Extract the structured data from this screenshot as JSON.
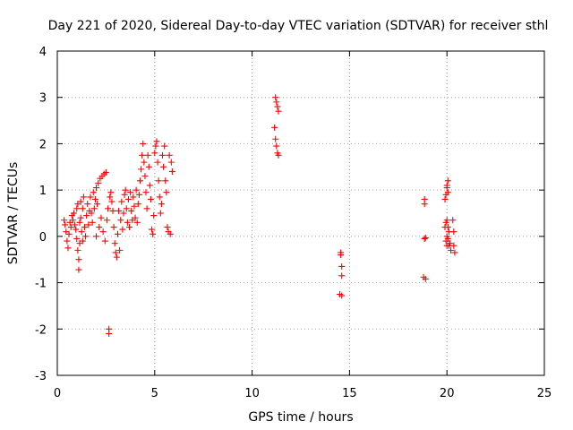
{
  "chart_data": {
    "type": "scatter",
    "title": "Day 221 of 2020, Sidereal Day-to-day VTEC variation (SDTVAR) for receiver sthl",
    "xlabel": "GPS time / hours",
    "ylabel": "SDTVAR / TECUs",
    "xlim": [
      0,
      25
    ],
    "ylim": [
      -3,
      4
    ],
    "xticks": [
      0,
      5,
      10,
      15,
      20,
      25
    ],
    "yticks": [
      -3,
      -2,
      -1,
      0,
      1,
      2,
      3,
      4
    ],
    "xtick_labels": [
      "0",
      "5",
      "10",
      "15",
      "20",
      "25"
    ],
    "ytick_labels": [
      "-3",
      "-2",
      "-1",
      "0",
      "1",
      "2",
      "3",
      "4"
    ],
    "grid": true,
    "marker": "+",
    "series": [
      {
        "name": "SDTVAR",
        "color": "#ff0000",
        "points": [
          [
            0.35,
            0.35
          ],
          [
            0.4,
            0.25
          ],
          [
            0.45,
            0.1
          ],
          [
            0.5,
            -0.1
          ],
          [
            0.55,
            -0.25
          ],
          [
            0.6,
            0.05
          ],
          [
            0.65,
            0.3
          ],
          [
            0.7,
            0.2
          ],
          [
            0.75,
            0.45
          ],
          [
            0.8,
            0.35
          ],
          [
            0.85,
            0.5
          ],
          [
            0.9,
            0.25
          ],
          [
            0.95,
            0.15
          ],
          [
            1.0,
            -0.05
          ],
          [
            1.0,
            0.6
          ],
          [
            1.05,
            -0.3
          ],
          [
            1.05,
            0.7
          ],
          [
            1.1,
            -0.5
          ],
          [
            1.1,
            -0.72
          ],
          [
            1.15,
            0.3
          ],
          [
            1.15,
            -0.15
          ],
          [
            1.2,
            0.4
          ],
          [
            1.2,
            0.75
          ],
          [
            1.25,
            0.1
          ],
          [
            1.3,
            -0.1
          ],
          [
            1.3,
            0.6
          ],
          [
            1.35,
            0.85
          ],
          [
            1.4,
            0.2
          ],
          [
            1.45,
            0.0
          ],
          [
            1.5,
            0.45
          ],
          [
            1.55,
            0.7
          ],
          [
            1.6,
            0.25
          ],
          [
            1.65,
            0.55
          ],
          [
            1.7,
            0.85
          ],
          [
            1.75,
            0.5
          ],
          [
            1.8,
            0.3
          ],
          [
            1.85,
            0.95
          ],
          [
            1.9,
            0.6
          ],
          [
            1.95,
            0.8
          ],
          [
            2.0,
            1.05
          ],
          [
            2.0,
            0.0
          ],
          [
            2.05,
            0.7
          ],
          [
            2.1,
            1.15
          ],
          [
            2.15,
            0.2
          ],
          [
            2.2,
            1.25
          ],
          [
            2.25,
            0.4
          ],
          [
            2.3,
            1.3
          ],
          [
            2.35,
            0.1
          ],
          [
            2.4,
            1.35
          ],
          [
            2.45,
            -0.1
          ],
          [
            2.5,
            1.38
          ],
          [
            2.55,
            0.35
          ],
          [
            2.6,
            0.6
          ],
          [
            2.65,
            -2.0
          ],
          [
            2.65,
            -2.1
          ],
          [
            2.7,
            0.85
          ],
          [
            2.75,
            0.95
          ],
          [
            2.8,
            0.75
          ],
          [
            2.85,
            0.55
          ],
          [
            2.9,
            0.2
          ],
          [
            2.95,
            -0.15
          ],
          [
            3.0,
            -0.35
          ],
          [
            3.05,
            -0.45
          ],
          [
            3.1,
            0.05
          ],
          [
            3.15,
            0.55
          ],
          [
            3.2,
            -0.3
          ],
          [
            3.25,
            0.35
          ],
          [
            3.3,
            0.75
          ],
          [
            3.35,
            0.15
          ],
          [
            3.4,
            0.5
          ],
          [
            3.45,
            0.9
          ],
          [
            3.5,
            1.0
          ],
          [
            3.55,
            0.6
          ],
          [
            3.6,
            0.3
          ],
          [
            3.65,
            0.8
          ],
          [
            3.7,
            0.2
          ],
          [
            3.75,
            0.95
          ],
          [
            3.8,
            0.55
          ],
          [
            3.85,
            0.35
          ],
          [
            3.9,
            0.85
          ],
          [
            3.95,
            0.65
          ],
          [
            4.0,
            0.4
          ],
          [
            4.05,
            1.0
          ],
          [
            4.1,
            0.3
          ],
          [
            4.15,
            0.7
          ],
          [
            4.2,
            0.9
          ],
          [
            4.25,
            1.2
          ],
          [
            4.3,
            1.45
          ],
          [
            4.35,
            1.75
          ],
          [
            4.4,
            2.0
          ],
          [
            4.45,
            1.6
          ],
          [
            4.5,
            1.3
          ],
          [
            4.55,
            0.95
          ],
          [
            4.6,
            0.6
          ],
          [
            4.65,
            1.75
          ],
          [
            4.7,
            1.5
          ],
          [
            4.75,
            1.1
          ],
          [
            4.8,
            0.8
          ],
          [
            4.85,
            0.15
          ],
          [
            4.9,
            0.05
          ],
          [
            4.95,
            0.45
          ],
          [
            5.0,
            1.8
          ],
          [
            5.05,
            1.95
          ],
          [
            5.1,
            2.05
          ],
          [
            5.15,
            1.6
          ],
          [
            5.2,
            1.2
          ],
          [
            5.25,
            0.85
          ],
          [
            5.3,
            0.5
          ],
          [
            5.35,
            0.7
          ],
          [
            5.4,
            1.75
          ],
          [
            5.45,
            1.5
          ],
          [
            5.5,
            1.95
          ],
          [
            5.55,
            1.2
          ],
          [
            5.6,
            0.95
          ],
          [
            5.65,
            0.2
          ],
          [
            5.7,
            0.1
          ],
          [
            5.75,
            1.75
          ],
          [
            5.8,
            0.05
          ],
          [
            5.85,
            1.6
          ],
          [
            5.9,
            1.4
          ],
          [
            11.2,
            3.0
          ],
          [
            11.25,
            2.9
          ],
          [
            11.3,
            2.8
          ],
          [
            11.35,
            2.7
          ],
          [
            11.15,
            2.35
          ],
          [
            11.2,
            2.1
          ],
          [
            11.25,
            1.95
          ],
          [
            11.3,
            1.8
          ],
          [
            11.35,
            1.75
          ],
          [
            14.55,
            -0.35
          ],
          [
            14.55,
            -0.4
          ],
          [
            14.6,
            -0.65
          ],
          [
            14.6,
            -0.85
          ],
          [
            14.5,
            -1.25
          ],
          [
            14.6,
            -1.28
          ],
          [
            18.85,
            0.8
          ],
          [
            18.85,
            0.7
          ],
          [
            18.85,
            -0.05
          ],
          [
            18.9,
            -0.03
          ],
          [
            18.8,
            -0.88
          ],
          [
            18.9,
            -0.92
          ],
          [
            19.9,
            0.8
          ],
          [
            19.95,
            0.9
          ],
          [
            20.0,
            1.05
          ],
          [
            20.05,
            1.2
          ],
          [
            20.0,
            1.1
          ],
          [
            20.05,
            0.95
          ],
          [
            19.9,
            0.2
          ],
          [
            19.95,
            0.3
          ],
          [
            20.0,
            0.35
          ],
          [
            20.05,
            0.2
          ],
          [
            20.1,
            0.1
          ],
          [
            20.0,
            0.0
          ],
          [
            19.95,
            -0.1
          ],
          [
            20.0,
            -0.2
          ],
          [
            20.05,
            -0.05
          ],
          [
            20.1,
            -0.2
          ],
          [
            20.15,
            -0.15
          ],
          [
            20.2,
            -0.3
          ],
          [
            20.3,
            0.35
          ],
          [
            20.35,
            0.1
          ],
          [
            20.35,
            -0.2
          ],
          [
            20.4,
            -0.35
          ]
        ]
      }
    ]
  }
}
